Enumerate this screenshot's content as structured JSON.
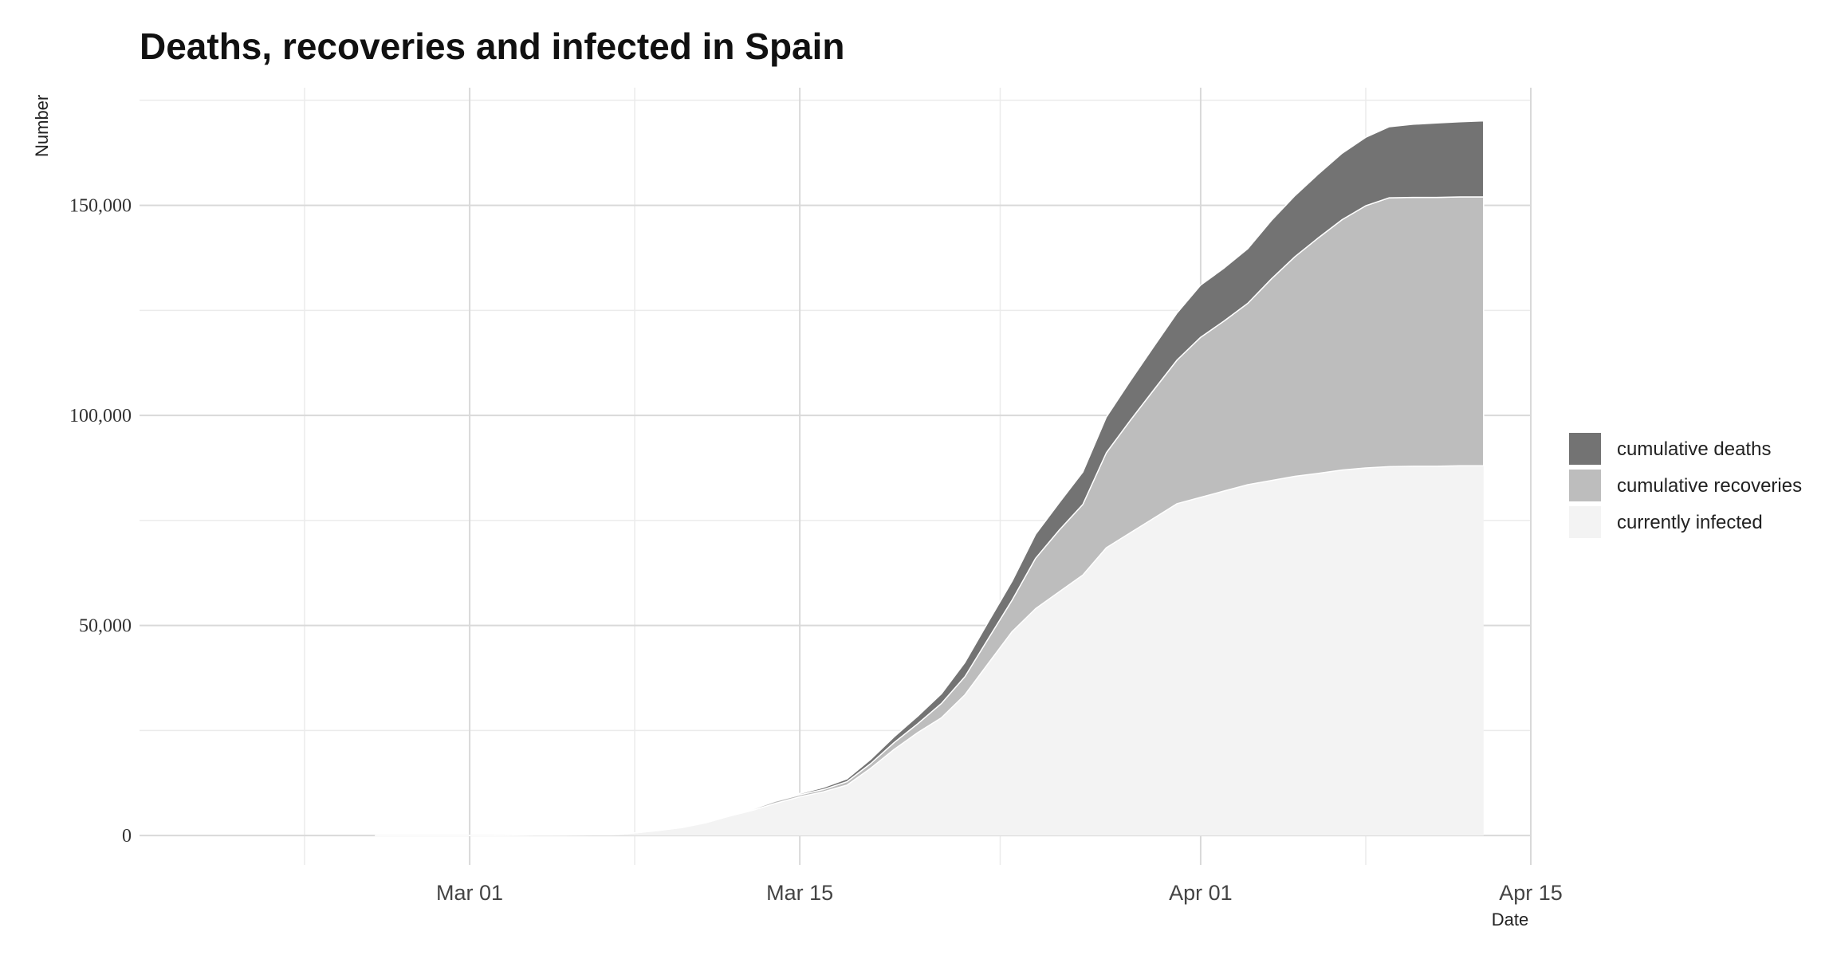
{
  "chart_data": {
    "type": "area",
    "stacked": true,
    "title": "Deaths, recoveries and infected in Spain",
    "xlabel": "Date",
    "ylabel": "Number",
    "x_ticks": [
      {
        "label": "Mar 01",
        "day": 0
      },
      {
        "label": "Mar 15",
        "day": 14
      },
      {
        "label": "Apr 01",
        "day": 31
      },
      {
        "label": "Apr 15",
        "day": 45
      }
    ],
    "y_ticks": [
      {
        "label": "0",
        "value": 0
      },
      {
        "label": "50,000",
        "value": 50000
      },
      {
        "label": "100,000",
        "value": 100000
      },
      {
        "label": "150,000",
        "value": 150000
      }
    ],
    "xlim_days": [
      -14,
      45
    ],
    "ylim": [
      -7000,
      178000
    ],
    "grid": true,
    "legend_position": "right",
    "days": [
      -4,
      -1,
      0,
      1,
      6,
      7,
      8,
      9,
      10,
      11,
      12,
      13,
      14,
      15,
      16,
      17,
      18,
      19,
      20,
      21,
      22,
      23,
      24,
      25,
      26,
      27,
      28,
      29,
      30,
      31,
      32,
      33,
      34,
      35,
      36,
      37,
      38,
      39,
      40,
      41,
      42,
      43
    ],
    "series": [
      {
        "name": "currently infected",
        "color": "#f3f3f3",
        "values": [
          0,
          0,
          0,
          0,
          200,
          600,
          1200,
          1900,
          3000,
          4600,
          6000,
          7700,
          9200,
          10400,
          12000,
          16000,
          20500,
          24500,
          28000,
          33500,
          41000,
          48500,
          54000,
          58000,
          62000,
          68500,
          72000,
          75500,
          79000,
          80500,
          82000,
          83500,
          84500,
          85500,
          86200,
          87000,
          87500,
          87800,
          87900,
          87900,
          88000,
          88000
        ]
      },
      {
        "name": "cumulative recoveries",
        "color": "#bdbdbd",
        "values": [
          0,
          0,
          0,
          0,
          0,
          0,
          0,
          0,
          100,
          150,
          300,
          550,
          500,
          550,
          800,
          1100,
          1600,
          2100,
          3400,
          4300,
          5900,
          7500,
          12000,
          14700,
          16800,
          22600,
          26700,
          30500,
          34200,
          38100,
          40500,
          43200,
          48000,
          52300,
          56100,
          59600,
          62400,
          64000,
          64000,
          64000,
          64000,
          64000
        ]
      },
      {
        "name": "cumulative deaths",
        "color": "#737373",
        "values": [
          0,
          0,
          0,
          0,
          0,
          0,
          0,
          0,
          0,
          50,
          100,
          200,
          300,
          500,
          700,
          1000,
          1400,
          1800,
          2300,
          3400,
          4000,
          4500,
          5700,
          6500,
          7700,
          8500,
          9400,
          10300,
          11200,
          12400,
          12600,
          13000,
          13900,
          14500,
          15200,
          15800,
          16300,
          16900,
          17400,
          17700,
          17900,
          18100
        ]
      }
    ]
  }
}
